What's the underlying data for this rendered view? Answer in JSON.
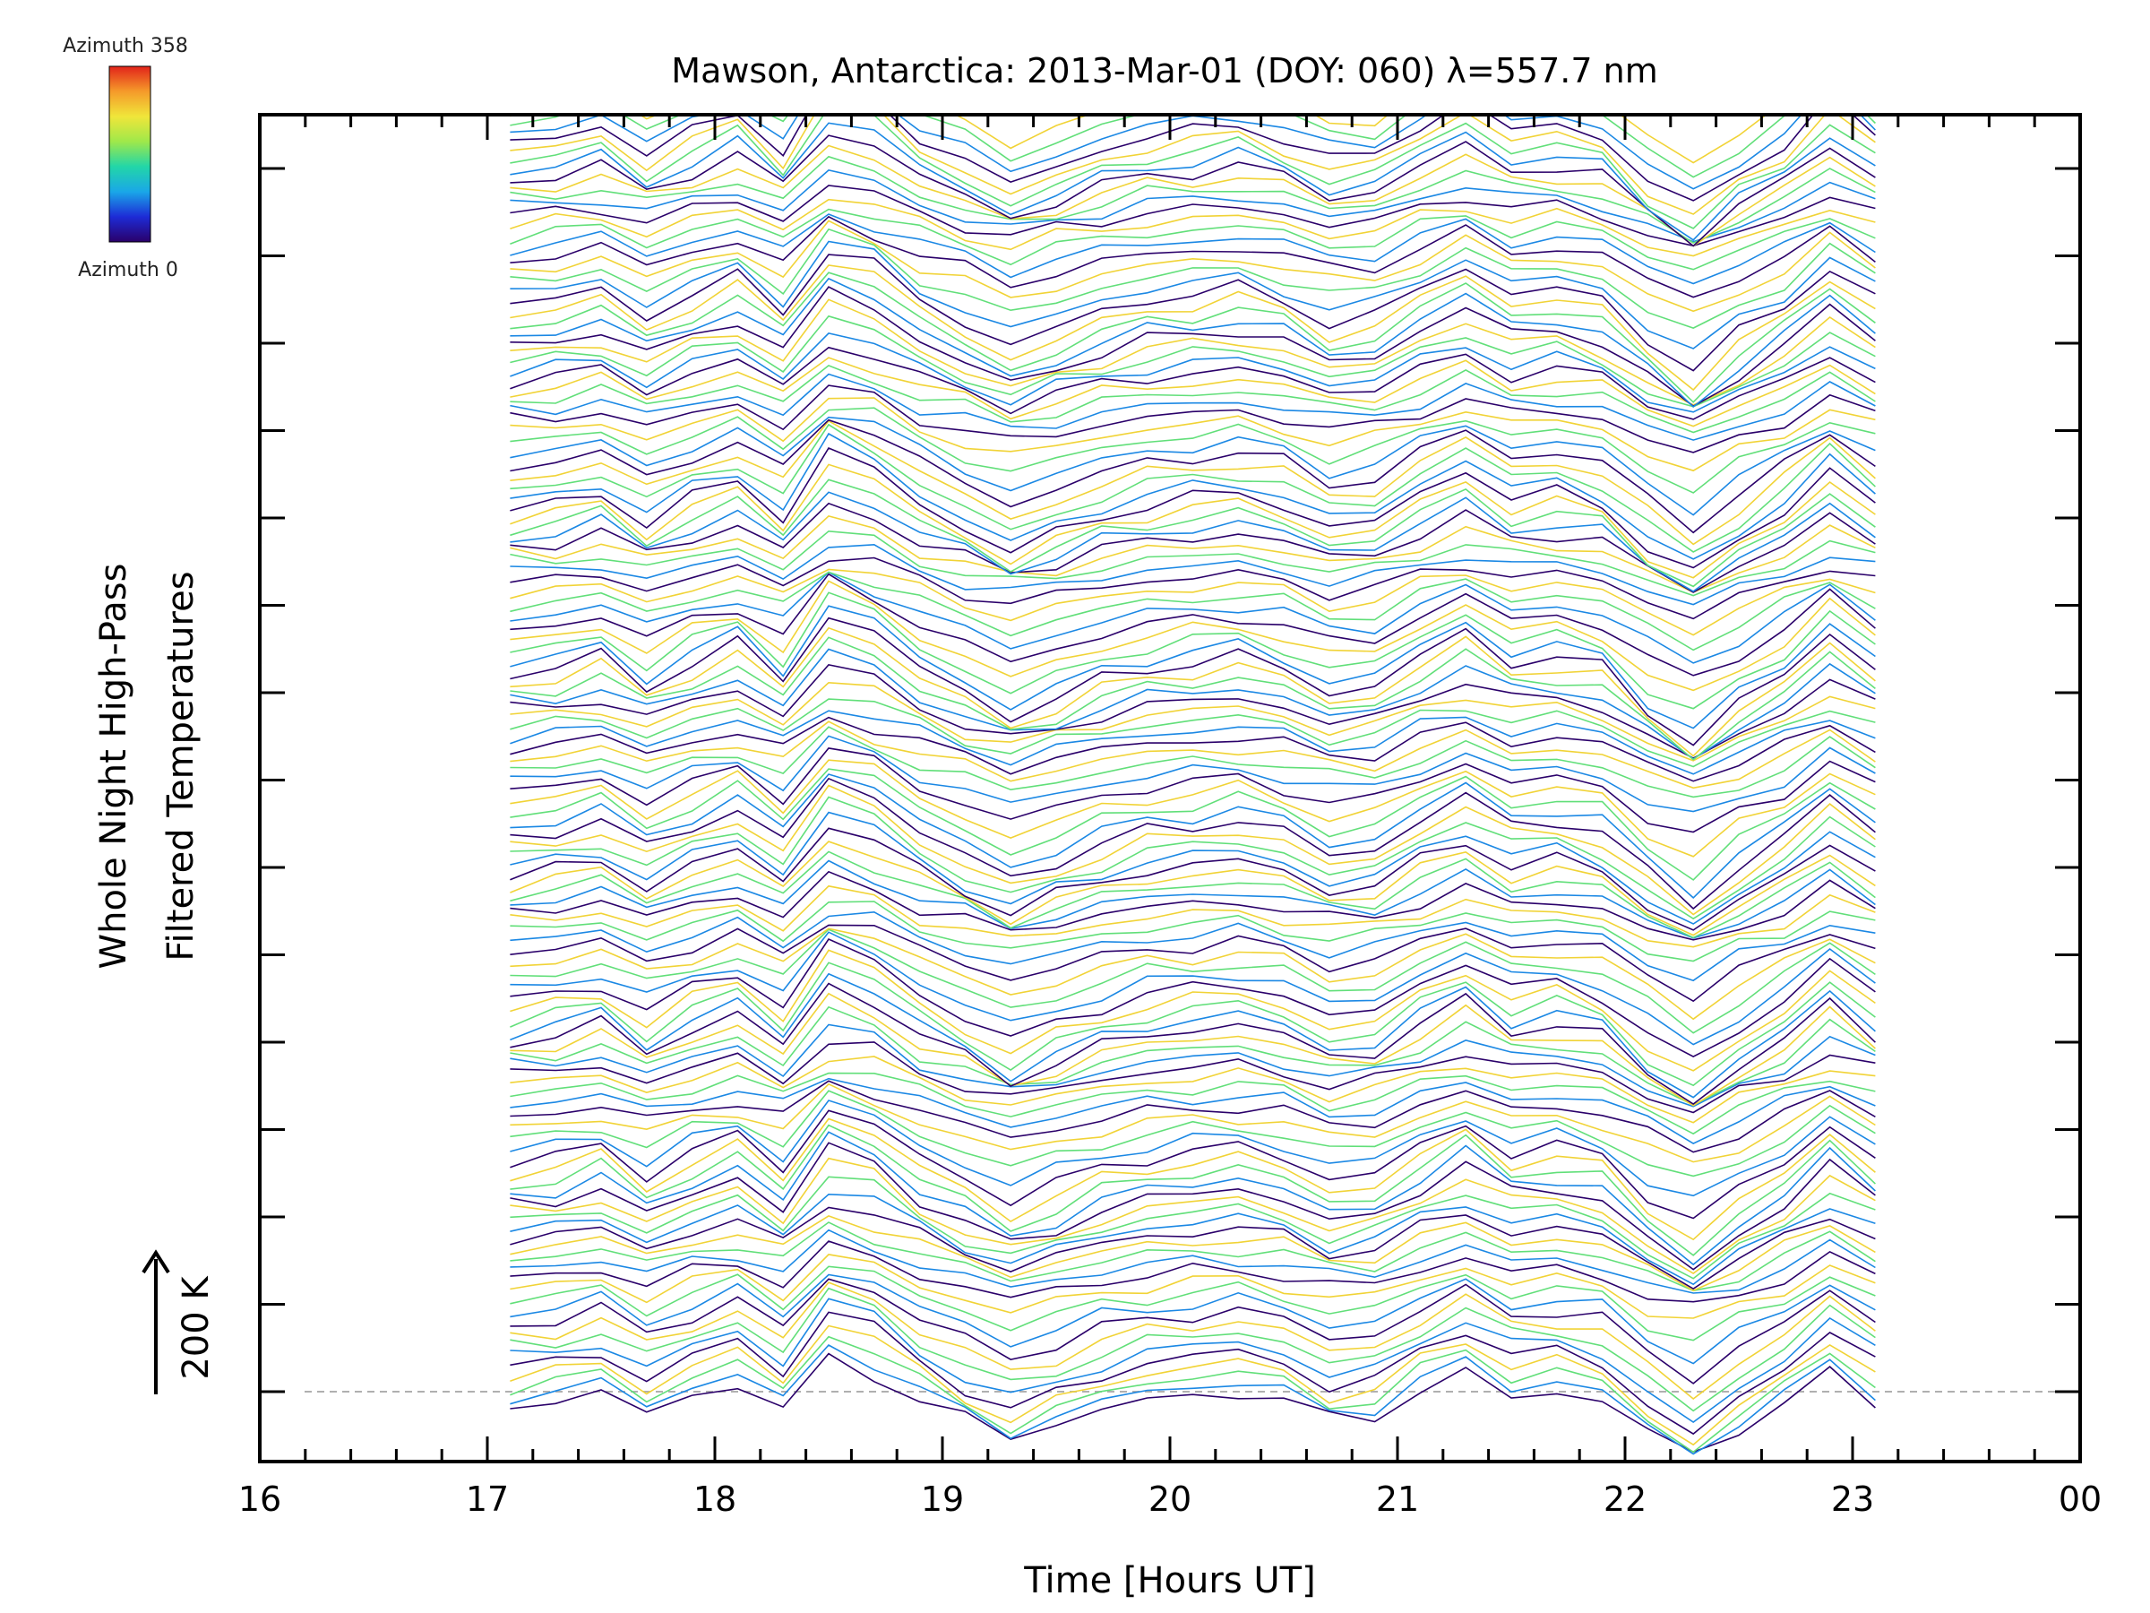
{
  "chart_data": {
    "type": "line",
    "title": "Mawson, Antarctica: 2013-Mar-01 (DOY: 060) λ=557.7 nm",
    "xlabel": "Time [Hours UT]",
    "ylabel_line1": "Whole Night High-Pass",
    "ylabel_line2": "Filtered Temperatures",
    "scale_label": "200 K",
    "colorbar": {
      "max_label": "Azimuth  358",
      "min_label": "Azimuth  0",
      "colors": [
        "#2a006a",
        "#1d2bd6",
        "#1aa7e8",
        "#22d6a8",
        "#9fe84a",
        "#f0e63a",
        "#f59a2a",
        "#e2231a"
      ]
    },
    "xlim": [
      16,
      24
    ],
    "x_ticks": [
      "16",
      "17",
      "18",
      "19",
      "20",
      "21",
      "22",
      "23",
      "00"
    ],
    "x_range_data": [
      17.1,
      23.1
    ],
    "n_traces": 128,
    "grid": false,
    "baseline_style": "dashed",
    "template": {
      "x": [
        17.1,
        17.3,
        17.5,
        17.7,
        17.9,
        18.1,
        18.3,
        18.5,
        18.7,
        18.9,
        19.1,
        19.3,
        19.5,
        19.7,
        19.9,
        20.1,
        20.3,
        20.5,
        20.7,
        20.9,
        21.1,
        21.3,
        21.5,
        21.7,
        21.9,
        22.1,
        22.3,
        22.5,
        22.7,
        22.9,
        23.1
      ],
      "deviation": [
        15,
        10,
        0,
        25,
        5,
        -10,
        20,
        -35,
        -20,
        10,
        30,
        50,
        35,
        20,
        10,
        5,
        0,
        10,
        30,
        25,
        0,
        -20,
        5,
        0,
        10,
        45,
        70,
        40,
        15,
        -20,
        10
      ]
    }
  }
}
